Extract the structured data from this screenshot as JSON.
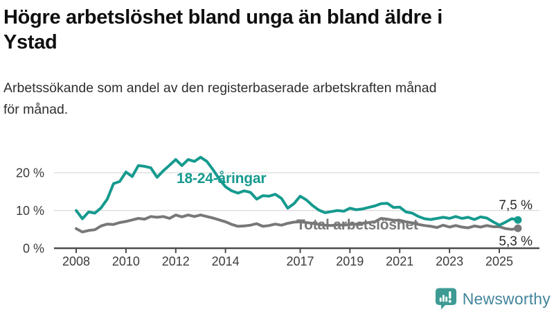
{
  "header": {
    "title_lines": [
      "Högre arbetslöshet bland unga än bland äldre i",
      "Ystad"
    ],
    "subtitle_lines": [
      "Arbetssökande som andel av den registerbaserade arbetskraften månad",
      "för månad."
    ]
  },
  "chart_data": {
    "type": "line",
    "title": "Högre arbetslöshet bland unga än bland äldre i Ystad",
    "subtitle": "Arbetssökande som andel av den registerbaserade arbetskraften månad för månad.",
    "unit": "%",
    "x_start_year": 2008,
    "x_step_years": 0.25,
    "x_end_year": 2025.75,
    "x_ticks": [
      2008,
      2010,
      2012,
      2014,
      2017,
      2019,
      2021,
      2023,
      2025
    ],
    "y_ticks": [
      {
        "value": 0,
        "label": "0 %"
      },
      {
        "value": 10,
        "label": "10 %"
      },
      {
        "value": 20,
        "label": "20 %"
      }
    ],
    "ylim": [
      0,
      26
    ],
    "grid": true,
    "grid_color": "#d9d9d9",
    "axis_color": "#4b4b4b",
    "legend_position": "inline-labels",
    "series": [
      {
        "name": "18-24-åringar",
        "color": "#159a8e",
        "end_label": "7,5 %",
        "end_value": 7.5,
        "values": [
          10.0,
          7.8,
          9.6,
          9.3,
          10.7,
          13.0,
          17.1,
          17.7,
          20.2,
          19.0,
          21.9,
          21.7,
          21.3,
          18.8,
          20.5,
          22.0,
          23.5,
          21.9,
          23.5,
          23.0,
          24.1,
          23.0,
          20.8,
          18.3,
          16.3,
          15.2,
          14.6,
          15.2,
          14.8,
          13.0,
          13.9,
          13.8,
          14.3,
          13.2,
          10.6,
          11.8,
          13.8,
          12.8,
          11.3,
          10.1,
          9.4,
          9.7,
          10.0,
          9.8,
          10.6,
          10.2,
          10.4,
          10.8,
          11.2,
          11.8,
          11.9,
          10.8,
          10.9,
          9.6,
          9.3,
          8.4,
          7.8,
          7.6,
          7.9,
          8.2,
          7.9,
          8.4,
          7.9,
          8.2,
          7.6,
          8.3,
          8.0,
          7.0,
          6.1,
          6.9,
          7.8,
          7.5
        ]
      },
      {
        "name": "Total arbetslöshet",
        "color": "#787779",
        "end_label": "5,3 %",
        "end_value": 5.3,
        "values": [
          5.2,
          4.3,
          4.7,
          4.9,
          5.9,
          6.4,
          6.3,
          6.8,
          7.1,
          7.5,
          7.9,
          7.7,
          8.4,
          8.2,
          8.4,
          7.9,
          8.8,
          8.3,
          8.8,
          8.4,
          8.8,
          8.4,
          8.0,
          7.5,
          7.0,
          6.3,
          5.8,
          5.9,
          6.1,
          6.5,
          5.8,
          6.0,
          6.4,
          6.1,
          6.6,
          6.9,
          7.0,
          6.8,
          6.6,
          6.3,
          6.1,
          6.0,
          6.2,
          6.1,
          6.3,
          6.4,
          6.6,
          6.8,
          7.0,
          7.9,
          7.7,
          7.4,
          7.4,
          7.0,
          6.7,
          6.3,
          6.0,
          5.8,
          5.5,
          6.1,
          5.6,
          6.0,
          5.6,
          5.4,
          5.9,
          5.6,
          6.0,
          5.7,
          5.7,
          5.2,
          5.0,
          5.3
        ]
      }
    ]
  },
  "footer": {
    "brand": "Newsworthy",
    "brand_color": "#44859b",
    "icon_color": "#3d9b94"
  }
}
